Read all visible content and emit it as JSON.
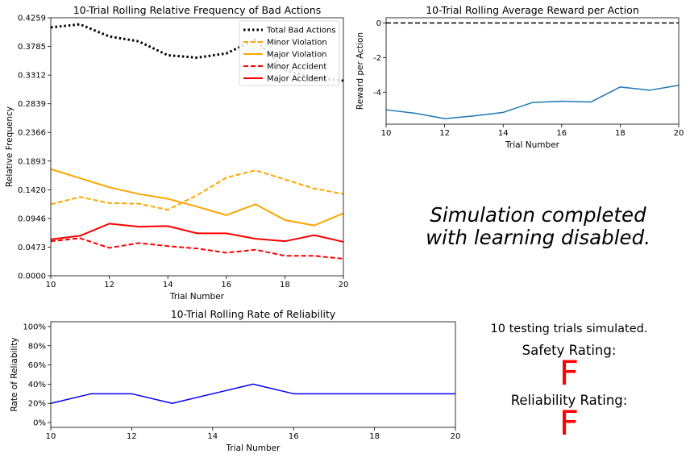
{
  "chart_data": [
    {
      "type": "line",
      "title": "10-Trial Rolling Relative Frequency of Bad Actions",
      "xlabel": "Trial Number",
      "ylabel": "Relative Frequency",
      "xlim": [
        10,
        20
      ],
      "ylim": [
        0,
        0.4259
      ],
      "xticks": [
        10,
        12,
        14,
        16,
        18,
        20
      ],
      "yticks": [
        "0.0000",
        "0.0473",
        "0.0946",
        "0.1420",
        "0.1893",
        "0.2366",
        "0.2839",
        "0.3312",
        "0.3785",
        "0.4259"
      ],
      "legend_position": "top-right",
      "x": [
        10,
        11,
        12,
        13,
        14,
        15,
        16,
        17,
        18,
        19,
        20
      ],
      "series": [
        {
          "name": "Total Bad Actions",
          "color": "#000000",
          "style": "dotted",
          "values": [
            0.41,
            0.415,
            0.395,
            0.387,
            0.364,
            0.36,
            0.367,
            0.39,
            0.339,
            0.327,
            0.322
          ]
        },
        {
          "name": "Minor Violation",
          "color": "#ffa500",
          "style": "dashed",
          "values": [
            0.118,
            0.13,
            0.12,
            0.119,
            0.109,
            0.133,
            0.162,
            0.174,
            0.159,
            0.144,
            0.135
          ]
        },
        {
          "name": "Major Violation",
          "color": "#ffa500",
          "style": "solid",
          "values": [
            0.176,
            0.161,
            0.146,
            0.135,
            0.127,
            0.114,
            0.1,
            0.118,
            0.092,
            0.083,
            0.103
          ]
        },
        {
          "name": "Minor Accident",
          "color": "#ff0000",
          "style": "dashed",
          "values": [
            0.057,
            0.062,
            0.046,
            0.054,
            0.049,
            0.045,
            0.038,
            0.043,
            0.033,
            0.033,
            0.028
          ]
        },
        {
          "name": "Major Accident",
          "color": "#ff0000",
          "style": "solid",
          "values": [
            0.06,
            0.066,
            0.086,
            0.081,
            0.082,
            0.07,
            0.07,
            0.061,
            0.057,
            0.067,
            0.056
          ]
        }
      ]
    },
    {
      "type": "line",
      "title": "10-Trial Rolling Average Reward per Action",
      "xlabel": "Trial Number",
      "ylabel": "Reward per Action",
      "xlim": [
        10,
        20
      ],
      "ylim": [
        -5.85,
        0.3
      ],
      "xticks": [
        10,
        12,
        14,
        16,
        18,
        20
      ],
      "yticks": [
        0,
        -2,
        -4
      ],
      "reference_line": {
        "y": 0,
        "color": "#000000",
        "style": "dashed"
      },
      "x": [
        10,
        11,
        12,
        13,
        14,
        15,
        16,
        17,
        18,
        19,
        20
      ],
      "series": [
        {
          "color": "#1f77b4",
          "style": "solid",
          "values": [
            -5.02,
            -5.22,
            -5.53,
            -5.37,
            -5.17,
            -4.6,
            -4.52,
            -4.57,
            -3.7,
            -3.89,
            -3.6
          ]
        }
      ]
    },
    {
      "type": "line",
      "title": "10-Trial Rolling Rate of Reliability",
      "xlabel": "Trial Number",
      "ylabel": "Rate of Reliability",
      "xlim": [
        10,
        20
      ],
      "ylim": [
        -5,
        105
      ],
      "xticks": [
        10,
        12,
        14,
        16,
        18,
        20
      ],
      "yticks": [
        "0%",
        "20%",
        "40%",
        "60%",
        "80%",
        "100%"
      ],
      "x": [
        10,
        11,
        12,
        13,
        14,
        15,
        16,
        17,
        18,
        19,
        20
      ],
      "series": [
        {
          "color": "#0000ff",
          "style": "solid",
          "values": [
            20,
            30,
            30,
            20,
            30,
            40,
            30,
            30,
            30,
            30,
            30
          ]
        }
      ]
    }
  ],
  "message": {
    "line1": "Simulation completed",
    "line2": "with learning disabled."
  },
  "ratings": {
    "trials_text": "10 testing trials simulated.",
    "safety_label": "Safety Rating:",
    "safety_grade": "F",
    "safety_color": "#ff0000",
    "reliability_label": "Reliability Rating:",
    "reliability_grade": "F",
    "reliability_color": "#ff0000"
  }
}
